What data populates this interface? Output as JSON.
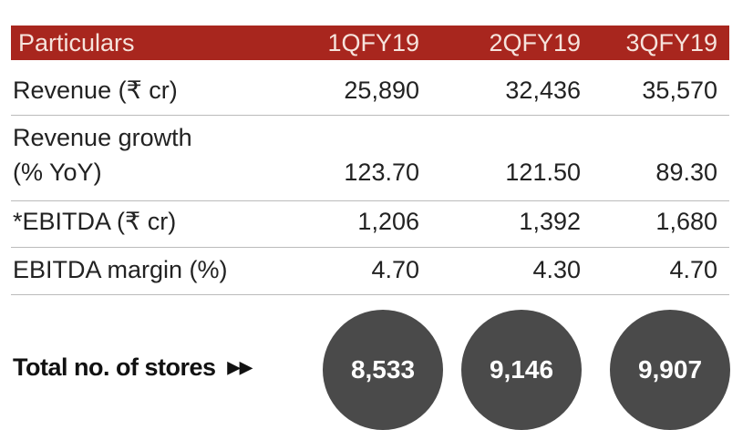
{
  "table": {
    "headers": [
      "Particulars",
      "1QFY19",
      "2QFY19",
      "3QFY19"
    ],
    "rows": [
      {
        "label": "Revenue (₹ cr)",
        "values": [
          "25,890",
          "32,436",
          "35,570"
        ]
      },
      {
        "label": "Revenue growth",
        "label2": "(% YoY)",
        "values": [
          "123.70",
          "121.50",
          "89.30"
        ]
      },
      {
        "label": "*EBITDA (₹ cr)",
        "values": [
          "1,206",
          "1,392",
          "1,680"
        ]
      },
      {
        "label": "EBITDA margin (%)",
        "values": [
          "4.70",
          "4.30",
          "4.70"
        ]
      }
    ]
  },
  "stores": {
    "label": "Total no. of stores",
    "icon": "double-chevron-right-icon",
    "values": [
      "8,533",
      "9,146",
      "9,907"
    ]
  },
  "colors": {
    "header": "#a8261e",
    "circle": "#4a4a4a"
  }
}
